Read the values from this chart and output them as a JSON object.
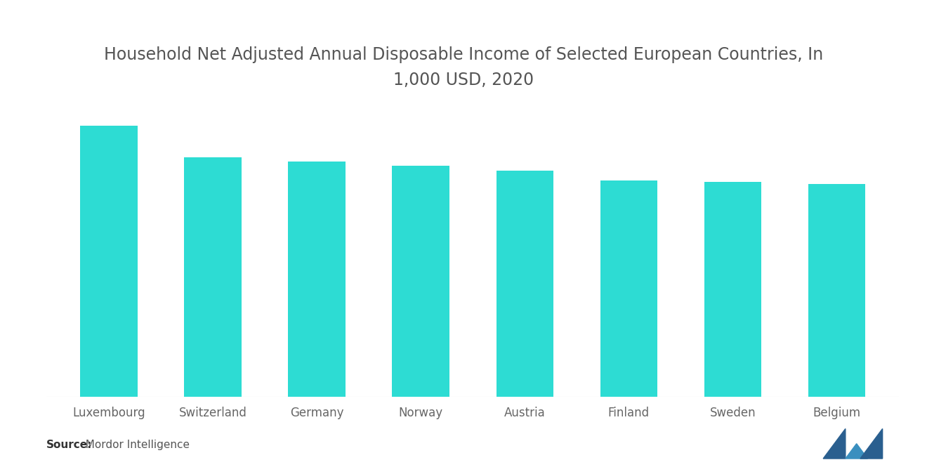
{
  "title": "Household Net Adjusted Annual Disposable Income of Selected European Countries, In\n1,000 USD, 2020",
  "categories": [
    "Luxembourg",
    "Switzerland",
    "Germany",
    "Norway",
    "Austria",
    "Finland",
    "Sweden",
    "Belgium"
  ],
  "values": [
    52,
    46,
    45.2,
    44.3,
    43.4,
    41.5,
    41.2,
    40.8
  ],
  "bar_color": "#2DDCD3",
  "background_color": "#ffffff",
  "title_fontsize": 17,
  "tick_fontsize": 12,
  "source_bold": "Source:",
  "source_normal": "  Mordor Intelligence",
  "ylim": [
    0,
    60
  ],
  "bar_width": 0.55
}
